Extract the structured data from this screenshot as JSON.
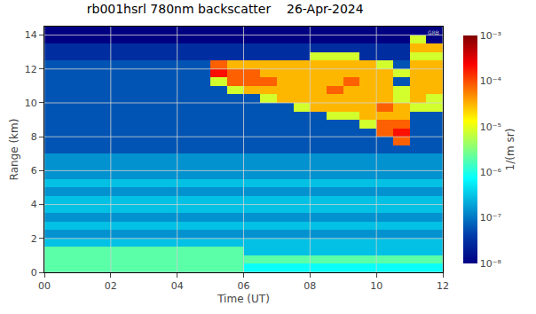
{
  "chart_data": {
    "type": "heatmap",
    "title": "rb001hsrl 780nm backscatter    26-Apr-2024",
    "x_label": "Time (UT)",
    "y_label": "Range (km)",
    "annotations": [
      "GRB"
    ],
    "grid": true,
    "log": true,
    "xlim": [
      0,
      12
    ],
    "xticks": [
      {
        "value": 0,
        "label": "00"
      },
      {
        "value": 2,
        "label": "02"
      },
      {
        "value": 4,
        "label": "04"
      },
      {
        "value": 6,
        "label": "06"
      },
      {
        "value": 8,
        "label": "08"
      },
      {
        "value": 10,
        "label": "10"
      },
      12
    ],
    "ylim": [
      0,
      14.5
    ],
    "yticks": [
      0,
      2,
      4,
      6,
      8,
      10,
      12,
      14
    ],
    "colorbar": {
      "title": "1/(m sr)",
      "range": [
        1e-08,
        0.001
      ],
      "ticks": [
        {
          "value": 1e-08,
          "label": "10⁻⁸"
        },
        {
          "value": 1e-07,
          "label": "10⁻⁷"
        },
        {
          "value": 1e-06,
          "label": "10⁻⁶"
        },
        {
          "value": 1e-05,
          "label": "10⁻⁵"
        },
        {
          "value": 0.0001,
          "label": "10⁻⁴"
        },
        {
          "value": 0.001,
          "label": "10⁻³"
        }
      ]
    },
    "x": [
      0.25,
      0.75,
      1.25,
      1.75,
      2.25,
      2.75,
      3.25,
      3.75,
      4.25,
      4.75,
      5.25,
      5.75,
      6.25,
      6.75,
      7.25,
      7.75,
      8.25,
      8.75,
      9.25,
      9.75,
      10.25,
      10.75,
      11.25,
      11.75
    ],
    "y": [
      0.25,
      0.75,
      1.25,
      1.75,
      2.25,
      2.75,
      3.25,
      3.75,
      4.25,
      4.75,
      5.25,
      5.75,
      6.25,
      6.75,
      7.25,
      7.75,
      8.25,
      8.75,
      9.25,
      9.75,
      10.25,
      10.75,
      11.25,
      11.75,
      12.25,
      12.75,
      13.25,
      13.75,
      14.25
    ],
    "cells": [
      [
        2e-06,
        2e-06,
        2e-06,
        2e-06,
        2e-06,
        2e-06,
        2e-06,
        2e-06,
        2e-06,
        2e-06,
        2e-06,
        2e-06,
        8e-07,
        8e-07,
        8e-07,
        8e-07,
        8e-07,
        8e-07,
        8e-07,
        8e-07,
        8e-07,
        8e-07,
        8e-07,
        8e-07
      ],
      [
        2e-06,
        2e-06,
        2e-06,
        2e-06,
        2e-06,
        2e-06,
        2e-06,
        2e-06,
        2e-06,
        2e-06,
        2e-06,
        2e-06,
        2e-06,
        2e-06,
        2e-06,
        2e-06,
        2e-06,
        2e-06,
        2e-06,
        2e-06,
        2e-06,
        2e-06,
        2e-06,
        2e-06
      ],
      [
        2e-06,
        2e-06,
        2e-06,
        2e-06,
        2e-06,
        2e-06,
        2e-06,
        2e-06,
        2e-06,
        2e-06,
        2e-06,
        2e-06,
        3e-07,
        3e-07,
        3e-07,
        3e-07,
        3e-07,
        3e-07,
        3e-07,
        3e-07,
        3e-07,
        3e-07,
        3e-07,
        3e-07
      ],
      [
        3e-07,
        3e-07,
        3e-07,
        3e-07,
        3e-07,
        3e-07,
        3e-07,
        3e-07,
        3e-07,
        3e-07,
        3e-07,
        3e-07,
        3e-07,
        3e-07,
        3e-07,
        3e-07,
        3e-07,
        3e-07,
        3e-07,
        3e-07,
        3e-07,
        3e-07,
        3e-07,
        3e-07
      ],
      [
        1.5e-07,
        1.5e-07,
        1.5e-07,
        1.5e-07,
        1.5e-07,
        1.5e-07,
        1.5e-07,
        1.5e-07,
        1.5e-07,
        1.5e-07,
        1.5e-07,
        1.5e-07,
        1.5e-07,
        1.5e-07,
        1.5e-07,
        1.5e-07,
        1.5e-07,
        1.5e-07,
        1.5e-07,
        1.5e-07,
        1.5e-07,
        1.5e-07,
        1.5e-07,
        1.5e-07
      ],
      [
        3e-07,
        3e-07,
        3e-07,
        3e-07,
        3e-07,
        3e-07,
        3e-07,
        3e-07,
        3e-07,
        3e-07,
        3e-07,
        3e-07,
        3e-07,
        3e-07,
        3e-07,
        3e-07,
        3e-07,
        3e-07,
        3e-07,
        3e-07,
        3e-07,
        3e-07,
        3e-07,
        3e-07
      ],
      [
        1.5e-07,
        1.5e-07,
        1.5e-07,
        1.5e-07,
        1.5e-07,
        1.5e-07,
        1.5e-07,
        1.5e-07,
        1.5e-07,
        1.5e-07,
        1.5e-07,
        1.5e-07,
        1.5e-07,
        1.5e-07,
        1.5e-07,
        1.5e-07,
        1.5e-07,
        1.5e-07,
        1.5e-07,
        1.5e-07,
        1.5e-07,
        1.5e-07,
        1.5e-07,
        1.5e-07
      ],
      [
        3e-07,
        3e-07,
        3e-07,
        3e-07,
        3e-07,
        3e-07,
        3e-07,
        3e-07,
        3e-07,
        3e-07,
        3e-07,
        3e-07,
        3e-07,
        3e-07,
        3e-07,
        3e-07,
        3e-07,
        3e-07,
        3e-07,
        3e-07,
        3e-07,
        3e-07,
        3e-07,
        3e-07
      ],
      [
        3e-07,
        3e-07,
        3e-07,
        3e-07,
        3e-07,
        3e-07,
        3e-07,
        3e-07,
        3e-07,
        3e-07,
        3e-07,
        3e-07,
        3e-07,
        3e-07,
        3e-07,
        3e-07,
        3e-07,
        3e-07,
        3e-07,
        3e-07,
        3e-07,
        3e-07,
        3e-07,
        3e-07
      ],
      [
        1.5e-07,
        1.5e-07,
        1.5e-07,
        1.5e-07,
        1.5e-07,
        1.5e-07,
        1.5e-07,
        1.5e-07,
        1.5e-07,
        1.5e-07,
        1.5e-07,
        1.5e-07,
        1.5e-07,
        1.5e-07,
        1.5e-07,
        1.5e-07,
        1.5e-07,
        1.5e-07,
        1.5e-07,
        1.5e-07,
        1.5e-07,
        1.5e-07,
        1.5e-07,
        1.5e-07
      ],
      [
        3e-07,
        3e-07,
        3e-07,
        3e-07,
        3e-07,
        3e-07,
        3e-07,
        3e-07,
        3e-07,
        3e-07,
        3e-07,
        3e-07,
        3e-07,
        3e-07,
        3e-07,
        3e-07,
        3e-07,
        3e-07,
        3e-07,
        3e-07,
        3e-07,
        3e-07,
        3e-07,
        3e-07
      ],
      [
        1.5e-07,
        1.5e-07,
        1.5e-07,
        1.5e-07,
        1.5e-07,
        1.5e-07,
        1.5e-07,
        1.5e-07,
        1.5e-07,
        1.5e-07,
        1.5e-07,
        1.5e-07,
        1.5e-07,
        1.5e-07,
        1.5e-07,
        1.5e-07,
        1.5e-07,
        1.5e-07,
        1.5e-07,
        1.5e-07,
        1.5e-07,
        1.5e-07,
        1.5e-07,
        1.5e-07
      ],
      [
        1.5e-07,
        1.5e-07,
        1.5e-07,
        1.5e-07,
        1.5e-07,
        1.5e-07,
        1.5e-07,
        1.5e-07,
        1.5e-07,
        1.5e-07,
        1.5e-07,
        1.5e-07,
        1.5e-07,
        1.5e-07,
        1.5e-07,
        1.5e-07,
        1.5e-07,
        1.5e-07,
        1.5e-07,
        1.5e-07,
        1.5e-07,
        1.5e-07,
        1.5e-07,
        1.5e-07
      ],
      [
        1.5e-07,
        1.5e-07,
        1.5e-07,
        1.5e-07,
        1.5e-07,
        1.5e-07,
        1.5e-07,
        1.5e-07,
        1.5e-07,
        1.5e-07,
        1.5e-07,
        1.5e-07,
        1.5e-07,
        1.5e-07,
        1.5e-07,
        1.5e-07,
        1.5e-07,
        1.5e-07,
        1.5e-07,
        1.5e-07,
        1.5e-07,
        1.5e-07,
        1.5e-07,
        1.5e-07
      ],
      [
        6e-08,
        6e-08,
        6e-08,
        6e-08,
        6e-08,
        6e-08,
        6e-08,
        6e-08,
        6e-08,
        6e-08,
        6e-08,
        6e-08,
        6e-08,
        6e-08,
        6e-08,
        6e-08,
        6e-08,
        6e-08,
        6e-08,
        6e-08,
        6e-08,
        6e-08,
        6e-08,
        6e-08
      ],
      [
        6e-08,
        6e-08,
        6e-08,
        6e-08,
        6e-08,
        6e-08,
        6e-08,
        6e-08,
        6e-08,
        6e-08,
        6e-08,
        6e-08,
        6e-08,
        6e-08,
        6e-08,
        6e-08,
        6e-08,
        6e-08,
        6e-08,
        6e-08,
        6e-08,
        8e-05,
        6e-08,
        6e-08
      ],
      [
        6e-08,
        6e-08,
        6e-08,
        6e-08,
        6e-08,
        6e-08,
        6e-08,
        6e-08,
        6e-08,
        6e-08,
        6e-08,
        6e-08,
        6e-08,
        6e-08,
        6e-08,
        6e-08,
        6e-08,
        6e-08,
        6e-08,
        6e-08,
        8e-05,
        0.0002,
        6e-08,
        6e-08
      ],
      [
        6e-08,
        6e-08,
        6e-08,
        6e-08,
        6e-08,
        6e-08,
        6e-08,
        6e-08,
        6e-08,
        6e-08,
        6e-08,
        6e-08,
        6e-08,
        6e-08,
        6e-08,
        6e-08,
        6e-08,
        6e-08,
        6e-08,
        8e-06,
        8e-05,
        8e-05,
        6e-08,
        6e-08
      ],
      [
        6e-08,
        6e-08,
        6e-08,
        6e-08,
        6e-08,
        6e-08,
        6e-08,
        6e-08,
        6e-08,
        6e-08,
        6e-08,
        6e-08,
        6e-08,
        6e-08,
        6e-08,
        6e-08,
        6e-08,
        8e-06,
        8e-06,
        3e-05,
        3e-05,
        3e-05,
        6e-08,
        6e-08
      ],
      [
        6e-08,
        6e-08,
        6e-08,
        6e-08,
        6e-08,
        6e-08,
        6e-08,
        6e-08,
        6e-08,
        6e-08,
        6e-08,
        6e-08,
        6e-08,
        6e-08,
        6e-08,
        8e-06,
        3e-05,
        3e-05,
        3e-05,
        3e-05,
        8e-05,
        3e-05,
        8e-06,
        8e-06
      ],
      [
        6e-08,
        6e-08,
        6e-08,
        6e-08,
        6e-08,
        6e-08,
        6e-08,
        6e-08,
        6e-08,
        6e-08,
        6e-08,
        6e-08,
        6e-08,
        8e-06,
        3e-05,
        3e-05,
        3e-05,
        3e-05,
        3e-05,
        3e-05,
        3e-05,
        8e-06,
        3e-05,
        8e-06
      ],
      [
        6e-08,
        6e-08,
        6e-08,
        6e-08,
        6e-08,
        6e-08,
        6e-08,
        6e-08,
        6e-08,
        6e-08,
        6e-08,
        8e-06,
        3e-05,
        3e-05,
        3e-05,
        3e-05,
        3e-05,
        8e-05,
        3e-05,
        3e-05,
        3e-05,
        8e-06,
        3e-05,
        3e-05
      ],
      [
        6e-08,
        6e-08,
        6e-08,
        6e-08,
        6e-08,
        6e-08,
        6e-08,
        6e-08,
        6e-08,
        6e-08,
        8e-06,
        8e-05,
        8e-05,
        8e-05,
        3e-05,
        3e-05,
        3e-05,
        3e-05,
        8e-05,
        3e-05,
        3e-05,
        6e-08,
        3e-05,
        3e-05
      ],
      [
        6e-08,
        6e-08,
        6e-08,
        6e-08,
        6e-08,
        6e-08,
        6e-08,
        6e-08,
        6e-08,
        6e-08,
        0.0002,
        8e-05,
        8e-05,
        3e-05,
        3e-05,
        3e-05,
        3e-05,
        3e-05,
        3e-05,
        3e-05,
        3e-05,
        8e-06,
        3e-05,
        3e-05
      ],
      [
        6e-08,
        6e-08,
        6e-08,
        6e-08,
        6e-08,
        6e-08,
        6e-08,
        6e-08,
        6e-08,
        6e-08,
        8e-05,
        3e-05,
        3e-05,
        3e-05,
        3e-05,
        3e-05,
        3e-05,
        3e-05,
        3e-05,
        3e-05,
        8e-06,
        6e-08,
        3e-05,
        3e-05
      ],
      [
        3e-08,
        3e-08,
        3e-08,
        3e-08,
        3e-08,
        3e-08,
        3e-08,
        3e-08,
        3e-08,
        3e-08,
        3e-08,
        3e-08,
        3e-08,
        3e-08,
        3e-08,
        3e-08,
        8e-06,
        8e-06,
        8e-06,
        3e-08,
        3e-08,
        3e-08,
        8e-06,
        8e-06
      ],
      [
        3e-08,
        3e-08,
        3e-08,
        3e-08,
        3e-08,
        3e-08,
        3e-08,
        3e-08,
        3e-08,
        3e-08,
        3e-08,
        3e-08,
        3e-08,
        3e-08,
        3e-08,
        3e-08,
        3e-08,
        3e-08,
        3e-08,
        3e-08,
        3e-08,
        3e-08,
        3e-05,
        3e-05
      ],
      [
        1e-08,
        1e-08,
        1e-08,
        1e-08,
        1e-08,
        1e-08,
        1e-08,
        1e-08,
        1e-08,
        1e-08,
        1e-08,
        1e-08,
        1e-08,
        1e-08,
        1e-08,
        1e-08,
        1e-08,
        1e-08,
        1e-08,
        1e-08,
        1e-08,
        1e-08,
        8e-06,
        1e-08
      ],
      [
        1e-08,
        1e-08,
        1e-08,
        1e-08,
        1e-08,
        1e-08,
        1e-08,
        1e-08,
        1e-08,
        1e-08,
        1e-08,
        1e-08,
        1e-08,
        1e-08,
        1e-08,
        1e-08,
        1e-08,
        1e-08,
        1e-08,
        1e-08,
        1e-08,
        1e-08,
        1e-08,
        1e-08
      ]
    ]
  }
}
